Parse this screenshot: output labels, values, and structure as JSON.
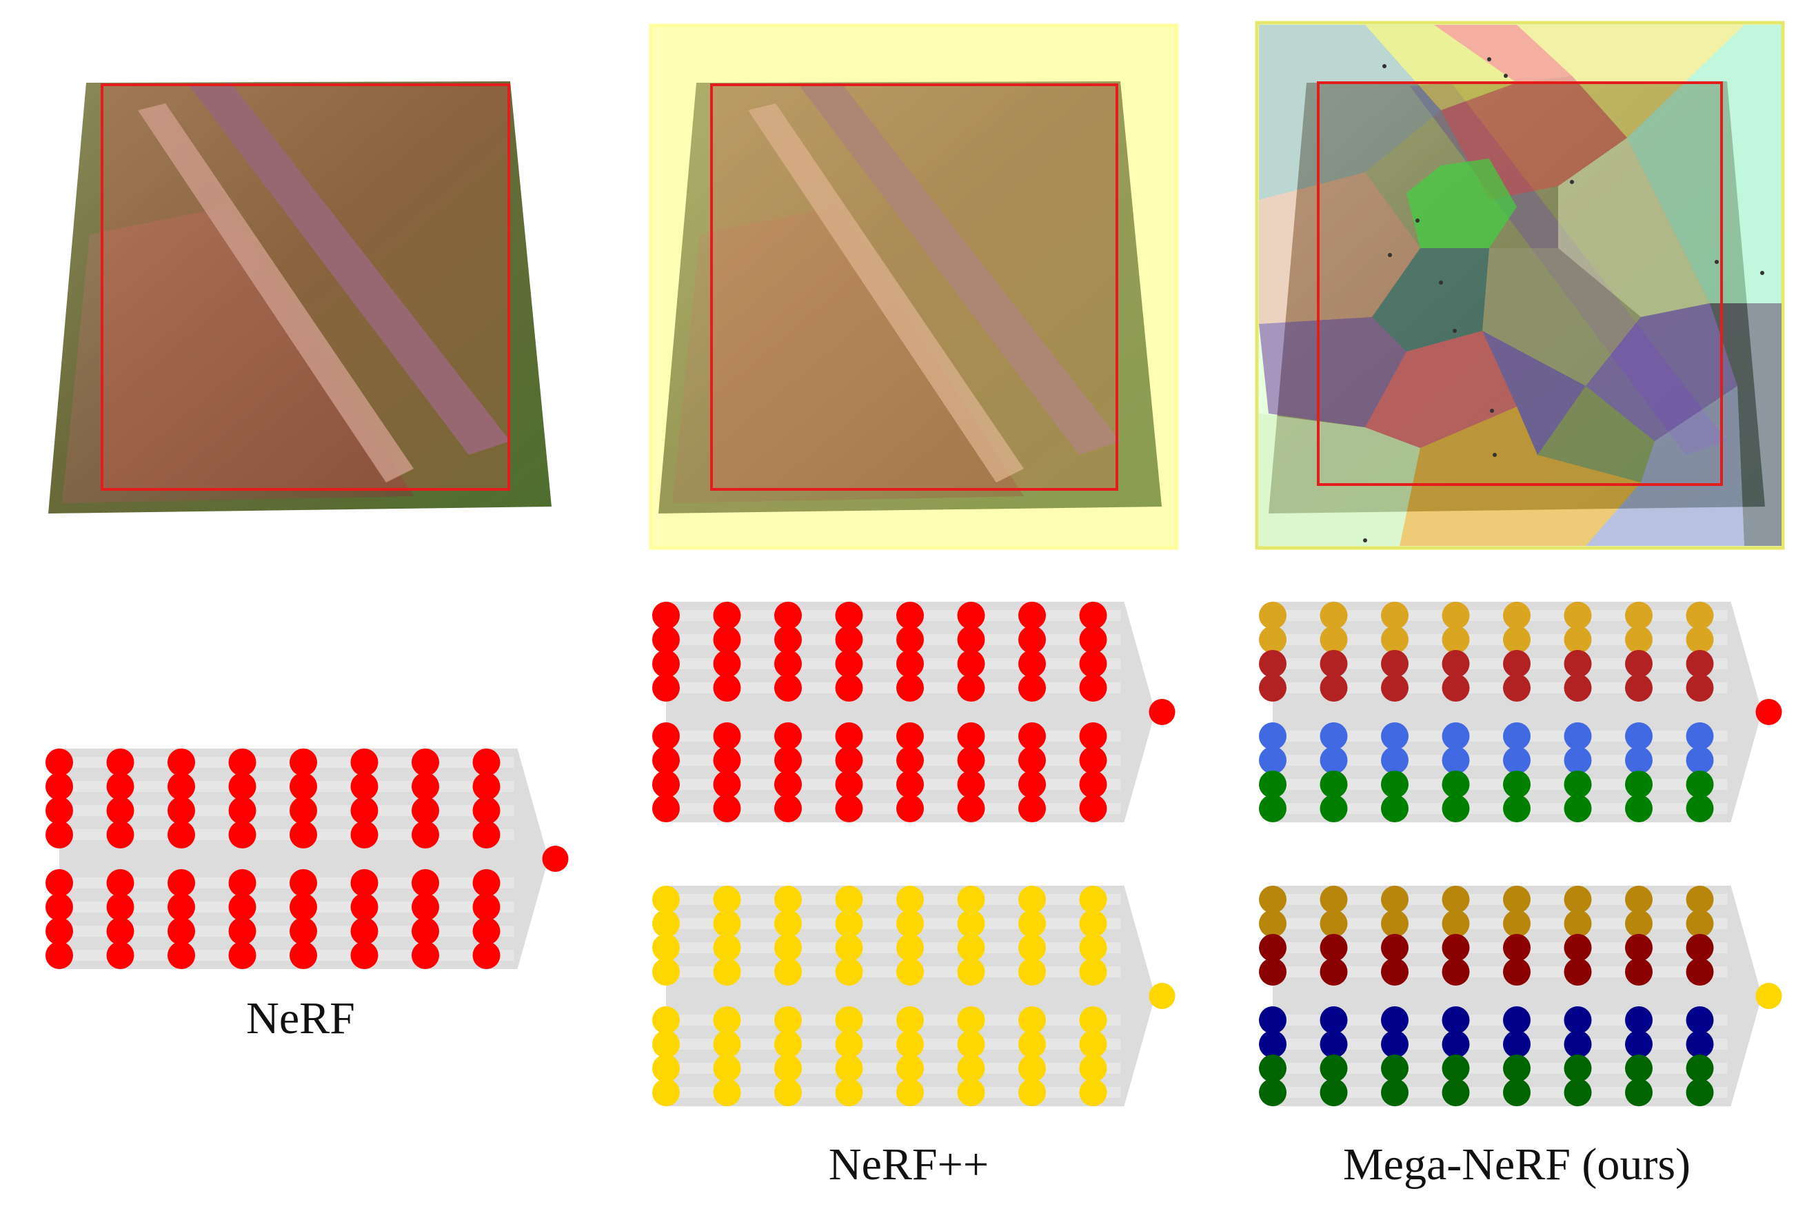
{
  "panels": [
    {
      "caption": "NeRF",
      "scene_bounds": "none",
      "region_overlay": "single-red-box",
      "mlp_color_rows": [
        [
          "#ff0000",
          "#ff0000",
          "#ff0000",
          "#ff0000",
          "#ff0000",
          "#ff0000",
          "#ff0000",
          "#ff0000"
        ]
      ],
      "output_colors": [
        "#ff0000"
      ]
    },
    {
      "caption": "NeRF++",
      "scene_bounds": "foreground-box-plus-yellow-background",
      "region_overlay": "red-box-and-yellow-frame",
      "mlp_color_rows": [
        [
          "#ff0000",
          "#ff0000",
          "#ff0000",
          "#ff0000",
          "#ff0000",
          "#ff0000",
          "#ff0000",
          "#ff0000"
        ],
        [
          "#ffd700",
          "#ffd700",
          "#ffd700",
          "#ffd700",
          "#ffd700",
          "#ffd700",
          "#ffd700",
          "#ffd700"
        ]
      ],
      "output_colors": [
        "#ff0000",
        "#ffd700"
      ]
    },
    {
      "caption": "Mega-NeRF (ours)",
      "scene_bounds": "voronoi-spatial-partition",
      "region_overlay": "voronoi-cells-with-centroids",
      "mlp_color_rows": [
        [
          "#daa520",
          "#daa520",
          "#b22222",
          "#b22222",
          "#4169e1",
          "#4169e1",
          "#008000",
          "#008000"
        ],
        [
          "#b8860b",
          "#b8860b",
          "#8b0000",
          "#8b0000",
          "#00008b",
          "#00008b",
          "#006400",
          "#006400"
        ]
      ],
      "output_colors": [
        "#ff0000",
        "#ffd700"
      ]
    }
  ],
  "colors": {
    "network_background": "#dcdcdc",
    "region_box": "#e51c1c",
    "background_frame": "#ffff66",
    "aerial_field_green": "#5e7a32",
    "aerial_field_brown": "#7a5a3a",
    "aerial_building": "#7a6f7a"
  }
}
